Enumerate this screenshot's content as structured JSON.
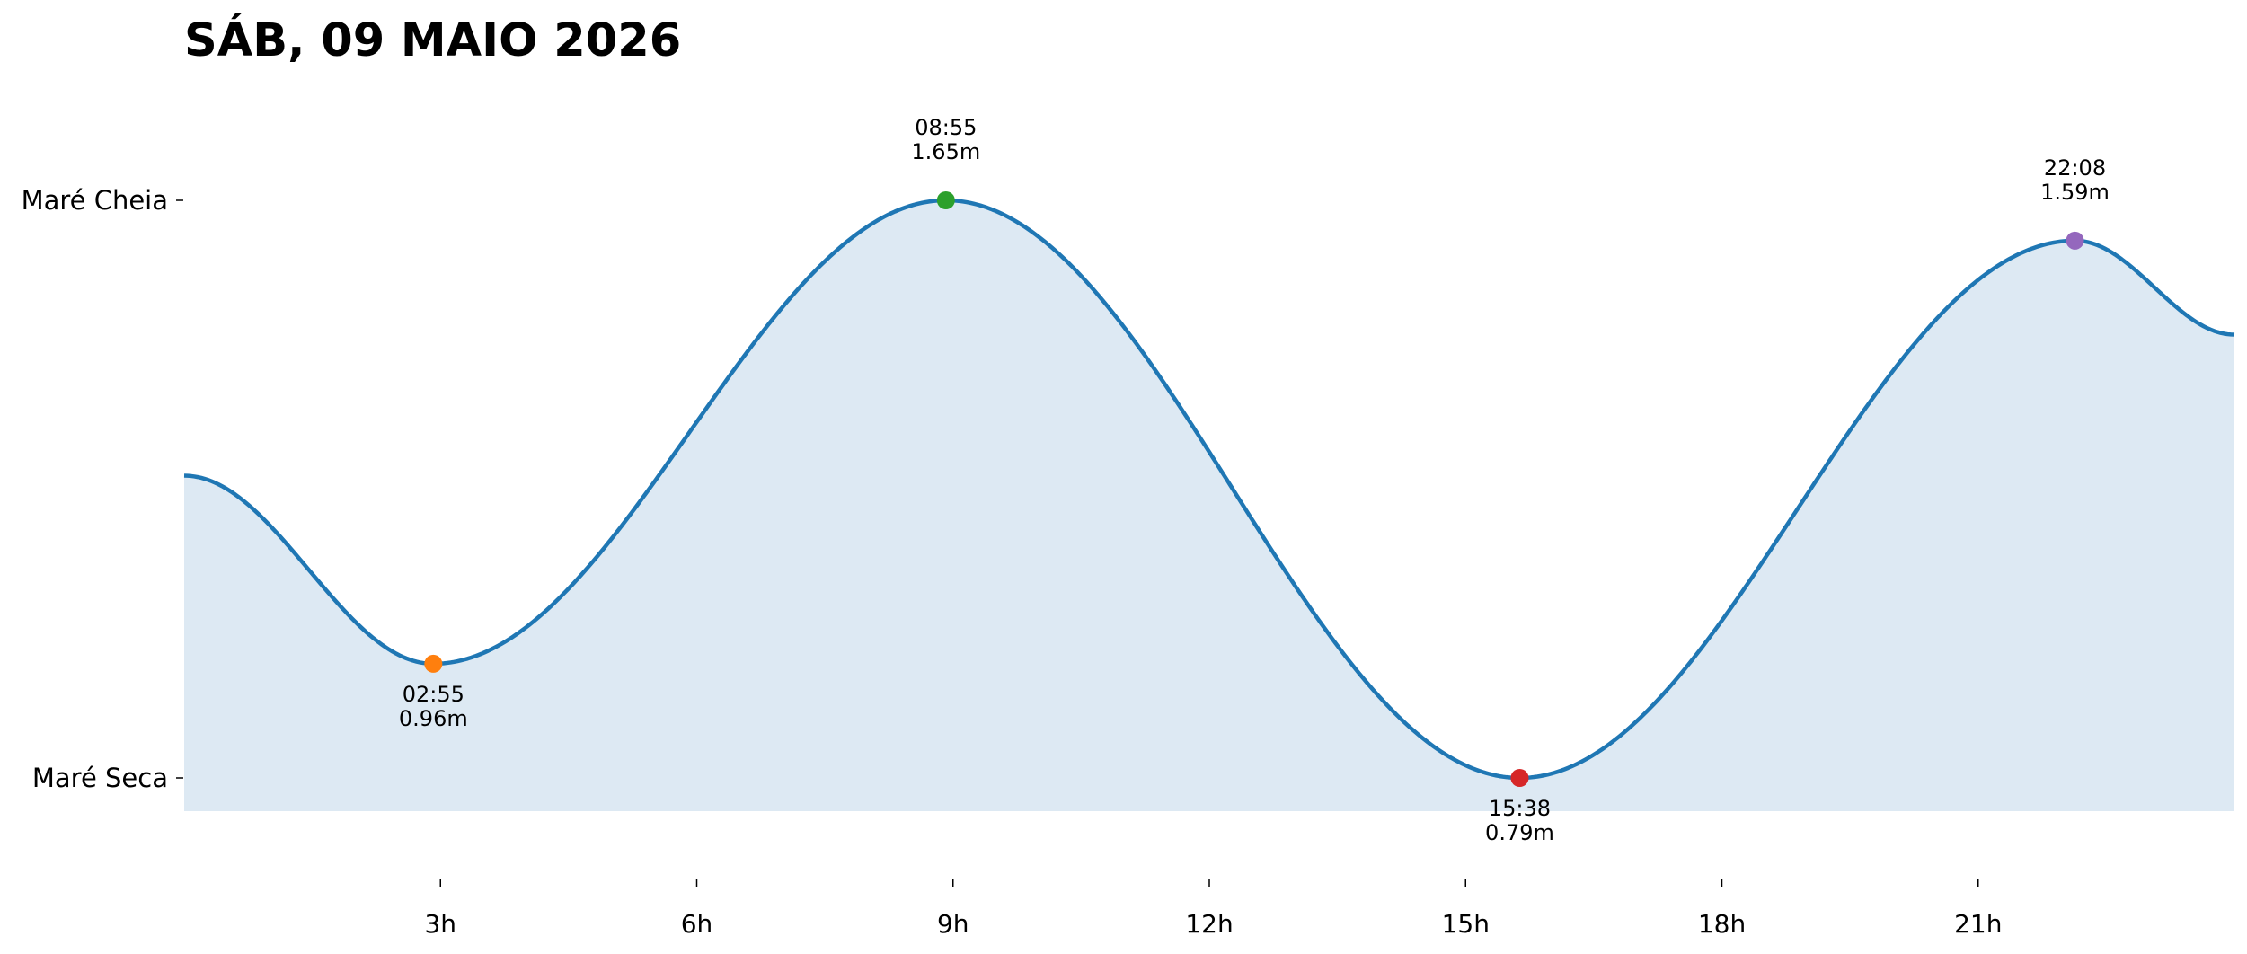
{
  "chart_data": {
    "type": "area",
    "title": "SÁB, 09 MAIO 2026",
    "xlabel": "",
    "ylabel": "",
    "xlim": [
      0,
      24
    ],
    "ylim": [
      0.75,
      1.69
    ],
    "x_unit": "hours",
    "x_ticks": [
      {
        "value": 3,
        "label": "3h"
      },
      {
        "value": 6,
        "label": "6h"
      },
      {
        "value": 9,
        "label": "9h"
      },
      {
        "value": 12,
        "label": "12h"
      },
      {
        "value": 15,
        "label": "15h"
      },
      {
        "value": 18,
        "label": "18h"
      },
      {
        "value": 21,
        "label": "21h"
      }
    ],
    "y_ticks": [
      {
        "value": 1.65,
        "label": "Maré Cheia"
      },
      {
        "value": 0.79,
        "label": "Maré Seca"
      }
    ],
    "grid": false,
    "legend": "none",
    "extremes": [
      {
        "time": "02:55",
        "height": 0.96,
        "label": "0.96m",
        "kind": "low",
        "color": "#ff7f0e"
      },
      {
        "time": "08:55",
        "height": 1.65,
        "label": "1.65m",
        "kind": "high",
        "color": "#2ca02c"
      },
      {
        "time": "15:38",
        "height": 0.79,
        "label": "0.79m",
        "kind": "low",
        "color": "#d62728"
      },
      {
        "time": "22:08",
        "height": 1.59,
        "label": "1.59m",
        "kind": "high",
        "color": "#9467bd"
      }
    ],
    "start_value": 1.24,
    "end_value": 1.45,
    "line_color": "#1f77b4",
    "fill_color": "#dde9f3"
  }
}
